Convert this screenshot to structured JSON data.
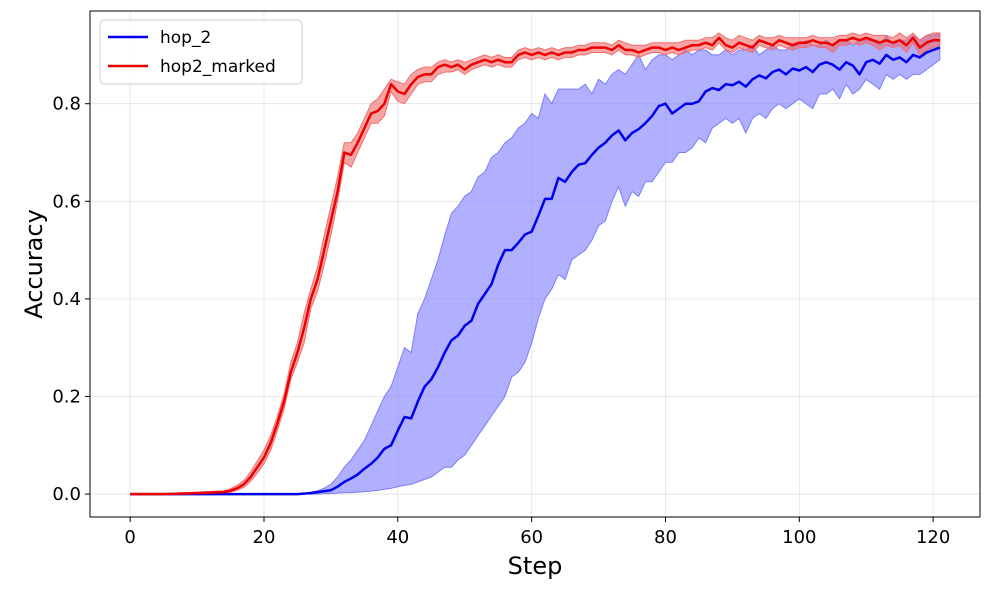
{
  "chart_data": {
    "type": "line",
    "xlabel": "Step",
    "ylabel": "Accuracy",
    "xlim": [
      -6,
      127
    ],
    "ylim": [
      -0.047,
      0.99
    ],
    "xticks": [
      0,
      20,
      40,
      60,
      80,
      100,
      120
    ],
    "yticks": [
      0.0,
      0.2,
      0.4,
      0.6,
      0.8
    ],
    "ytick_labels": [
      "0.0",
      "0.2",
      "0.4",
      "0.6",
      "0.8"
    ],
    "grid": true,
    "legend_position": "top-left",
    "series": [
      {
        "name": "hop_2",
        "color": "#0000ee",
        "band_color": "#7b7bff",
        "x": [
          0,
          5,
          10,
          15,
          20,
          25,
          27,
          28,
          29,
          30,
          31,
          32,
          33,
          34,
          35,
          36,
          37,
          38,
          39,
          40,
          41,
          42,
          43,
          44,
          45,
          46,
          47,
          48,
          49,
          50,
          51,
          52,
          53,
          54,
          55,
          56,
          57,
          58,
          59,
          60,
          61,
          62,
          63,
          64,
          65,
          66,
          67,
          68,
          69,
          70,
          71,
          72,
          73,
          74,
          75,
          76,
          77,
          78,
          79,
          80,
          81,
          82,
          83,
          84,
          85,
          86,
          87,
          88,
          89,
          90,
          91,
          92,
          93,
          94,
          95,
          96,
          97,
          98,
          99,
          100,
          101,
          102,
          103,
          104,
          105,
          106,
          107,
          108,
          109,
          110,
          111,
          112,
          113,
          114,
          115,
          116,
          117,
          118,
          119,
          120,
          121
        ],
        "mean": [
          0.0,
          0.0,
          0.0,
          0.0,
          0.0,
          0.0,
          0.002,
          0.004,
          0.006,
          0.008,
          0.015,
          0.025,
          0.032,
          0.04,
          0.052,
          0.062,
          0.075,
          0.093,
          0.1,
          0.13,
          0.158,
          0.155,
          0.19,
          0.22,
          0.235,
          0.26,
          0.29,
          0.315,
          0.325,
          0.345,
          0.355,
          0.39,
          0.41,
          0.43,
          0.47,
          0.5,
          0.5,
          0.515,
          0.532,
          0.538,
          0.57,
          0.605,
          0.605,
          0.648,
          0.64,
          0.66,
          0.675,
          0.678,
          0.695,
          0.71,
          0.72,
          0.735,
          0.745,
          0.725,
          0.74,
          0.748,
          0.76,
          0.775,
          0.795,
          0.8,
          0.78,
          0.79,
          0.8,
          0.8,
          0.805,
          0.825,
          0.832,
          0.828,
          0.84,
          0.838,
          0.845,
          0.835,
          0.85,
          0.858,
          0.852,
          0.865,
          0.87,
          0.86,
          0.872,
          0.868,
          0.875,
          0.865,
          0.88,
          0.885,
          0.88,
          0.87,
          0.885,
          0.878,
          0.86,
          0.885,
          0.89,
          0.882,
          0.9,
          0.89,
          0.895,
          0.885,
          0.9,
          0.895,
          0.905,
          0.91,
          0.915
        ],
        "upper": [
          0.0,
          0.0,
          0.0,
          0.0,
          0.0,
          0.0,
          0.004,
          0.007,
          0.012,
          0.02,
          0.035,
          0.055,
          0.07,
          0.09,
          0.11,
          0.14,
          0.17,
          0.2,
          0.22,
          0.26,
          0.3,
          0.29,
          0.37,
          0.4,
          0.44,
          0.48,
          0.53,
          0.575,
          0.59,
          0.61,
          0.62,
          0.65,
          0.66,
          0.69,
          0.7,
          0.72,
          0.73,
          0.75,
          0.76,
          0.78,
          0.77,
          0.82,
          0.8,
          0.83,
          0.83,
          0.83,
          0.83,
          0.84,
          0.82,
          0.85,
          0.84,
          0.86,
          0.87,
          0.86,
          0.88,
          0.9,
          0.87,
          0.89,
          0.9,
          0.9,
          0.89,
          0.9,
          0.91,
          0.9,
          0.91,
          0.91,
          0.9,
          0.9,
          0.91,
          0.9,
          0.91,
          0.91,
          0.92,
          0.9,
          0.91,
          0.92,
          0.91,
          0.91,
          0.92,
          0.92,
          0.93,
          0.92,
          0.92,
          0.93,
          0.92,
          0.93,
          0.93,
          0.92,
          0.93,
          0.93,
          0.93,
          0.92,
          0.94,
          0.92,
          0.93,
          0.93,
          0.94,
          0.93,
          0.94,
          0.94,
          0.945
        ],
        "lower": [
          0.0,
          0.0,
          0.0,
          0.0,
          0.0,
          0.0,
          0.0,
          0.0,
          0.001,
          0.001,
          0.002,
          0.003,
          0.003,
          0.004,
          0.005,
          0.006,
          0.008,
          0.01,
          0.012,
          0.015,
          0.018,
          0.02,
          0.025,
          0.03,
          0.035,
          0.045,
          0.055,
          0.055,
          0.07,
          0.08,
          0.1,
          0.12,
          0.14,
          0.16,
          0.18,
          0.2,
          0.24,
          0.25,
          0.27,
          0.31,
          0.36,
          0.4,
          0.42,
          0.45,
          0.44,
          0.48,
          0.49,
          0.5,
          0.52,
          0.55,
          0.56,
          0.6,
          0.63,
          0.59,
          0.62,
          0.61,
          0.64,
          0.64,
          0.66,
          0.68,
          0.68,
          0.7,
          0.7,
          0.71,
          0.73,
          0.72,
          0.75,
          0.76,
          0.77,
          0.76,
          0.77,
          0.74,
          0.77,
          0.78,
          0.77,
          0.79,
          0.8,
          0.79,
          0.8,
          0.81,
          0.8,
          0.79,
          0.82,
          0.82,
          0.83,
          0.81,
          0.84,
          0.82,
          0.83,
          0.85,
          0.84,
          0.83,
          0.86,
          0.85,
          0.86,
          0.85,
          0.86,
          0.86,
          0.87,
          0.88,
          0.89
        ]
      },
      {
        "name": "hop2_marked",
        "color": "#ee0000",
        "band_color": "#f26b6b",
        "x": [
          0,
          5,
          10,
          14,
          15,
          16,
          17,
          18,
          19,
          20,
          21,
          22,
          23,
          24,
          25,
          26,
          27,
          28,
          29,
          30,
          31,
          32,
          33,
          34,
          35,
          36,
          37,
          38,
          39,
          40,
          41,
          42,
          43,
          44,
          45,
          46,
          47,
          48,
          49,
          50,
          51,
          52,
          53,
          54,
          55,
          56,
          57,
          58,
          59,
          60,
          61,
          62,
          63,
          64,
          65,
          66,
          67,
          68,
          69,
          70,
          71,
          72,
          73,
          74,
          75,
          76,
          77,
          78,
          79,
          80,
          81,
          82,
          83,
          84,
          85,
          86,
          87,
          88,
          89,
          90,
          91,
          92,
          93,
          94,
          95,
          96,
          97,
          98,
          99,
          100,
          101,
          102,
          103,
          104,
          105,
          106,
          107,
          108,
          109,
          110,
          111,
          112,
          113,
          114,
          115,
          116,
          117,
          118,
          119,
          120,
          121
        ],
        "mean": [
          0.0,
          0.0,
          0.002,
          0.004,
          0.007,
          0.012,
          0.02,
          0.035,
          0.055,
          0.075,
          0.105,
          0.145,
          0.19,
          0.25,
          0.29,
          0.34,
          0.4,
          0.44,
          0.5,
          0.56,
          0.62,
          0.7,
          0.695,
          0.72,
          0.75,
          0.78,
          0.785,
          0.8,
          0.84,
          0.825,
          0.82,
          0.84,
          0.855,
          0.86,
          0.86,
          0.875,
          0.88,
          0.875,
          0.88,
          0.87,
          0.88,
          0.885,
          0.89,
          0.885,
          0.89,
          0.885,
          0.885,
          0.9,
          0.905,
          0.9,
          0.905,
          0.9,
          0.905,
          0.9,
          0.905,
          0.905,
          0.91,
          0.91,
          0.915,
          0.915,
          0.915,
          0.91,
          0.92,
          0.91,
          0.91,
          0.905,
          0.91,
          0.915,
          0.915,
          0.91,
          0.915,
          0.91,
          0.915,
          0.92,
          0.92,
          0.925,
          0.92,
          0.935,
          0.92,
          0.915,
          0.925,
          0.92,
          0.915,
          0.93,
          0.925,
          0.92,
          0.93,
          0.925,
          0.92,
          0.925,
          0.925,
          0.93,
          0.925,
          0.925,
          0.92,
          0.93,
          0.93,
          0.935,
          0.93,
          0.935,
          0.93,
          0.925,
          0.93,
          0.925,
          0.93,
          0.92,
          0.935,
          0.915,
          0.925,
          0.93,
          0.93
        ],
        "upper": [
          0.0,
          0.001,
          0.004,
          0.007,
          0.011,
          0.018,
          0.028,
          0.045,
          0.068,
          0.09,
          0.12,
          0.16,
          0.205,
          0.27,
          0.31,
          0.37,
          0.42,
          0.465,
          0.53,
          0.59,
          0.65,
          0.72,
          0.72,
          0.74,
          0.77,
          0.8,
          0.81,
          0.83,
          0.85,
          0.845,
          0.84,
          0.86,
          0.87,
          0.875,
          0.875,
          0.885,
          0.89,
          0.885,
          0.89,
          0.885,
          0.89,
          0.895,
          0.9,
          0.895,
          0.9,
          0.895,
          0.895,
          0.91,
          0.915,
          0.91,
          0.915,
          0.91,
          0.915,
          0.91,
          0.915,
          0.915,
          0.92,
          0.92,
          0.925,
          0.925,
          0.925,
          0.92,
          0.93,
          0.925,
          0.92,
          0.92,
          0.92,
          0.925,
          0.925,
          0.925,
          0.925,
          0.925,
          0.93,
          0.93,
          0.93,
          0.935,
          0.935,
          0.945,
          0.935,
          0.93,
          0.94,
          0.935,
          0.93,
          0.94,
          0.935,
          0.935,
          0.94,
          0.935,
          0.935,
          0.935,
          0.935,
          0.94,
          0.935,
          0.935,
          0.935,
          0.94,
          0.94,
          0.945,
          0.94,
          0.945,
          0.94,
          0.94,
          0.94,
          0.935,
          0.945,
          0.935,
          0.945,
          0.93,
          0.94,
          0.945,
          0.945
        ],
        "lower": [
          0.0,
          0.0,
          0.001,
          0.002,
          0.004,
          0.008,
          0.014,
          0.026,
          0.043,
          0.062,
          0.09,
          0.13,
          0.175,
          0.235,
          0.27,
          0.31,
          0.38,
          0.415,
          0.47,
          0.53,
          0.6,
          0.68,
          0.67,
          0.7,
          0.73,
          0.76,
          0.76,
          0.775,
          0.825,
          0.805,
          0.8,
          0.82,
          0.84,
          0.845,
          0.845,
          0.86,
          0.865,
          0.865,
          0.87,
          0.86,
          0.87,
          0.875,
          0.88,
          0.875,
          0.88,
          0.875,
          0.875,
          0.89,
          0.895,
          0.89,
          0.895,
          0.89,
          0.895,
          0.89,
          0.895,
          0.895,
          0.9,
          0.9,
          0.905,
          0.905,
          0.905,
          0.9,
          0.91,
          0.9,
          0.9,
          0.895,
          0.9,
          0.905,
          0.905,
          0.9,
          0.905,
          0.9,
          0.905,
          0.91,
          0.91,
          0.915,
          0.91,
          0.925,
          0.91,
          0.905,
          0.915,
          0.91,
          0.905,
          0.92,
          0.915,
          0.91,
          0.92,
          0.915,
          0.91,
          0.915,
          0.915,
          0.92,
          0.915,
          0.915,
          0.905,
          0.92,
          0.92,
          0.925,
          0.92,
          0.925,
          0.92,
          0.91,
          0.92,
          0.915,
          0.92,
          0.905,
          0.925,
          0.9,
          0.91,
          0.915,
          0.92
        ]
      }
    ]
  }
}
